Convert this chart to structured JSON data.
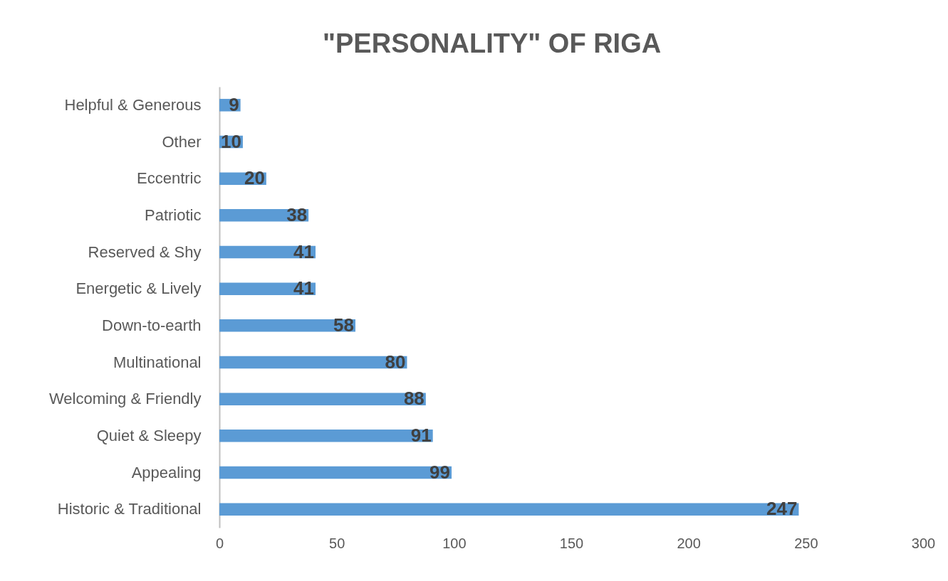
{
  "chart_data": {
    "type": "bar",
    "orientation": "horizontal",
    "title": "\"PERSONALITY\" OF RIGA",
    "categories": [
      "Helpful & Generous",
      "Other",
      "Eccentric",
      "Patriotic",
      "Reserved & Shy",
      "Energetic & Lively",
      "Down-to-earth",
      "Multinational",
      "Welcoming & Friendly",
      "Quiet & Sleepy",
      "Appealing",
      "Historic & Traditional"
    ],
    "values": [
      9,
      10,
      20,
      38,
      41,
      41,
      58,
      80,
      88,
      91,
      99,
      247
    ],
    "color": "#5b9bd5",
    "xlim": [
      0,
      300
    ],
    "xticks": [
      0,
      50,
      100,
      150,
      200,
      250,
      300
    ],
    "grid": false,
    "data_labels": true
  }
}
